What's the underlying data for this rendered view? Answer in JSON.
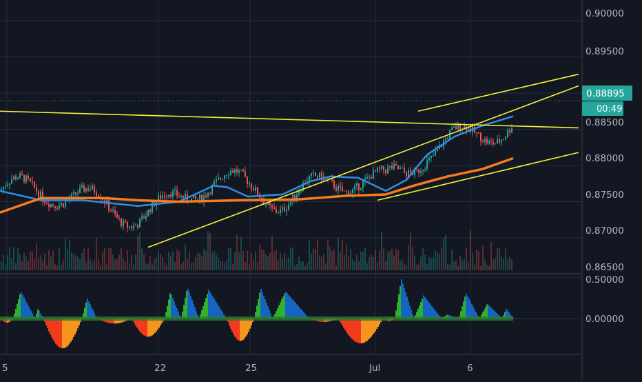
{
  "colors": {
    "background": "#131722",
    "grid": "#2a2e39",
    "axis_text": "#b2b5be",
    "candle_up": "#26a69a",
    "candle_down": "#ef5350",
    "ma_blue": "#2e8ee6",
    "ma_orange": "#f57c1f",
    "trendline": "#f2f23a",
    "price_tag": "#26a69a",
    "osc_pos_rising": "#1565c0",
    "osc_pos_falling": "#2fb130",
    "osc_neg_falling": "#f23a1c",
    "osc_neg_rising": "#f7941d"
  },
  "price_axis": {
    "labels": [
      "0.90000",
      "0.89500",
      "0.88895",
      "0.88500",
      "0.88000",
      "0.87500",
      "0.87000",
      "0.86500"
    ],
    "current_price": "0.88895",
    "countdown": "00:49"
  },
  "oscillator_axis": {
    "labels": [
      "0.50000",
      "0.00000"
    ]
  },
  "time_axis": {
    "labels": [
      "5",
      "22",
      "25",
      "Jul",
      "6"
    ]
  },
  "chart_data": [
    {
      "type": "candlestick",
      "title": "",
      "ylim": [
        0.8645,
        0.9015
      ],
      "x_ticks": [
        "5",
        "22",
        "25",
        "Jul",
        "6"
      ],
      "last_price": 0.88895,
      "series": [
        {
          "type": "moving-average",
          "color": "#2e8ee6",
          "points": [
            [
              0,
              0.8765
            ],
            [
              60,
              0.8752
            ],
            [
              120,
              0.8752
            ],
            [
              200,
              0.8744
            ],
            [
              260,
              0.875
            ],
            [
              310,
              0.8772
            ],
            [
              330,
              0.877
            ],
            [
              360,
              0.8757
            ],
            [
              410,
              0.876
            ],
            [
              450,
              0.8778
            ],
            [
              480,
              0.8785
            ],
            [
              520,
              0.8783
            ],
            [
              560,
              0.8765
            ],
            [
              590,
              0.878
            ],
            [
              620,
              0.8815
            ],
            [
              660,
              0.884
            ],
            [
              700,
              0.8855
            ],
            [
              745,
              0.8868
            ]
          ]
        },
        {
          "type": "moving-average",
          "color": "#f57c1f",
          "points": [
            [
              0,
              0.8735
            ],
            [
              60,
              0.8755
            ],
            [
              150,
              0.8755
            ],
            [
              200,
              0.8752
            ],
            [
              260,
              0.875
            ],
            [
              350,
              0.8752
            ],
            [
              430,
              0.8753
            ],
            [
              500,
              0.8758
            ],
            [
              560,
              0.876
            ],
            [
              600,
              0.8772
            ],
            [
              650,
              0.8785
            ],
            [
              700,
              0.8795
            ],
            [
              745,
              0.881
            ]
          ]
        }
      ],
      "trendlines": [
        {
          "from": [
            0,
            0.8875
          ],
          "to": [
            840,
            0.8852
          ]
        },
        {
          "from": [
            215,
            0.8687
          ],
          "to": [
            840,
            0.891
          ]
        },
        {
          "from": [
            548,
            0.8752
          ],
          "to": [
            840,
            0.8818
          ]
        },
        {
          "from": [
            607,
            0.8875
          ],
          "to": [
            840,
            0.8926
          ]
        }
      ]
    },
    {
      "type": "histogram",
      "title": "",
      "ylim": [
        -0.48,
        0.6
      ],
      "y_ticks": [
        "0.50000",
        "0.00000"
      ],
      "segments": [
        {
          "from": 0,
          "to": 18,
          "peak": -0.05
        },
        {
          "from": 18,
          "to": 50,
          "peak": 0.33
        },
        {
          "from": 50,
          "to": 62,
          "peak": 0.12
        },
        {
          "from": 62,
          "to": 118,
          "peak": -0.36
        },
        {
          "from": 118,
          "to": 140,
          "peak": 0.25
        },
        {
          "from": 140,
          "to": 190,
          "peak": -0.06
        },
        {
          "from": 190,
          "to": 238,
          "peak": -0.22
        },
        {
          "from": 238,
          "to": 262,
          "peak": 0.32
        },
        {
          "from": 262,
          "to": 288,
          "peak": 0.38
        },
        {
          "from": 288,
          "to": 328,
          "peak": 0.35
        },
        {
          "from": 328,
          "to": 368,
          "peak": -0.27
        },
        {
          "from": 368,
          "to": 395,
          "peak": 0.37
        },
        {
          "from": 395,
          "to": 448,
          "peak": 0.33
        },
        {
          "from": 448,
          "to": 490,
          "peak": -0.04
        },
        {
          "from": 490,
          "to": 555,
          "peak": -0.3
        },
        {
          "from": 555,
          "to": 572,
          "peak": -0.03
        },
        {
          "from": 572,
          "to": 600,
          "peak": 0.48
        },
        {
          "from": 600,
          "to": 640,
          "peak": 0.28
        },
        {
          "from": 640,
          "to": 665,
          "peak": 0.05
        },
        {
          "from": 665,
          "to": 695,
          "peak": 0.31
        },
        {
          "from": 695,
          "to": 728,
          "peak": 0.18
        },
        {
          "from": 728,
          "to": 745,
          "peak": 0.12
        }
      ]
    }
  ]
}
